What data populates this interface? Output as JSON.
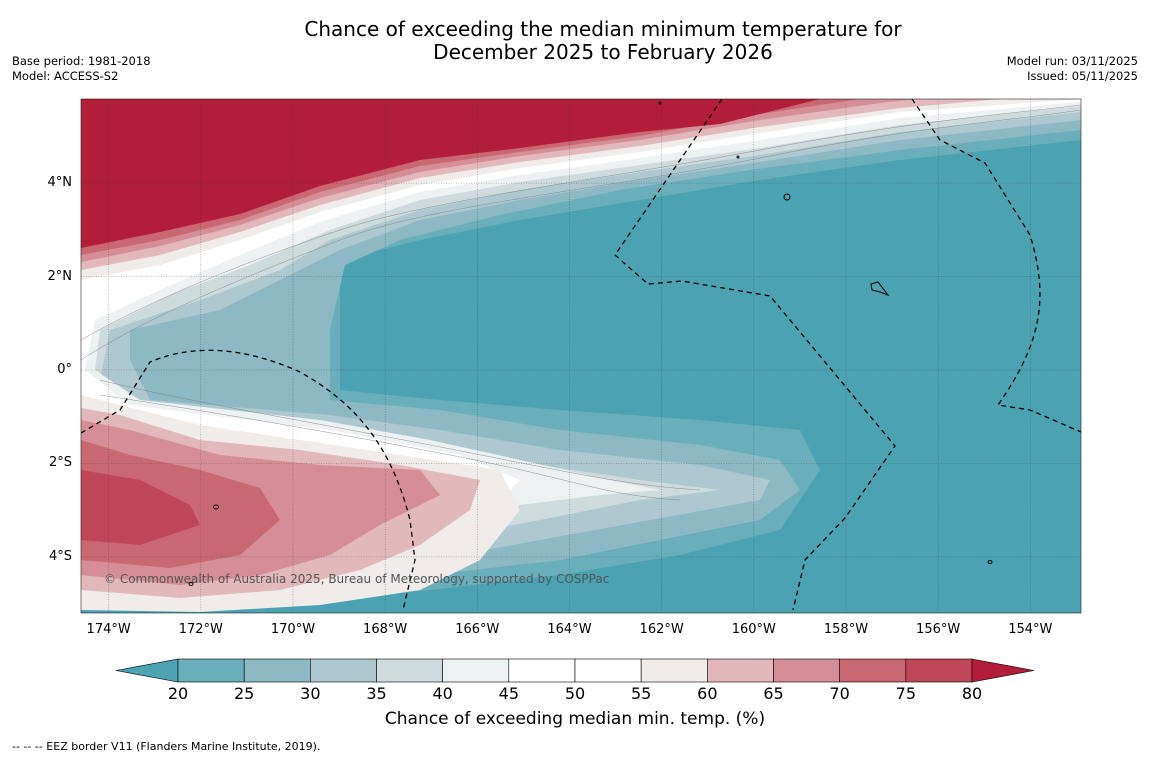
{
  "title": {
    "line1": "Chance of exceeding the median minimum temperature for",
    "line2": "December 2025 to February 2026"
  },
  "meta": {
    "base_period": "Base period: 1981-2018",
    "model": "Model: ACCESS-S2",
    "model_run": "Model run: 03/11/2025",
    "issued": "Issued: 05/11/2025"
  },
  "credit": "© Commonwealth of Australia 2025, Bureau of Meteorology, supported by COSPPac",
  "map": {
    "lon_labels": [
      "174°W",
      "172°W",
      "170°W",
      "168°W",
      "166°W",
      "164°W",
      "162°W",
      "160°W",
      "158°W",
      "156°W",
      "154°W"
    ],
    "lat_labels": [
      "4°N",
      "2°N",
      "0°",
      "2°S",
      "4°S"
    ],
    "lon_range": [
      -174.6,
      -152.9
    ],
    "lat_range": [
      -5.2,
      5.8
    ]
  },
  "colorbar": {
    "ticks": [
      "20",
      "25",
      "30",
      "35",
      "40",
      "45",
      "50",
      "55",
      "60",
      "65",
      "70",
      "75",
      "80"
    ],
    "colors": [
      "#4aa2b2",
      "#6aaebb",
      "#8cb9c4",
      "#adc8ce",
      "#cfdadd",
      "#edf1f2",
      "#ffffff",
      "#ffffff",
      "#efecea",
      "#e2b8bd",
      "#d58e97",
      "#c96873",
      "#be4656",
      "#b21e39"
    ],
    "label": "Chance of exceeding median min. temp. (%)"
  },
  "footer": "--  --  -- EEZ border V11 (Flanders Marine Institute, 2019)."
}
